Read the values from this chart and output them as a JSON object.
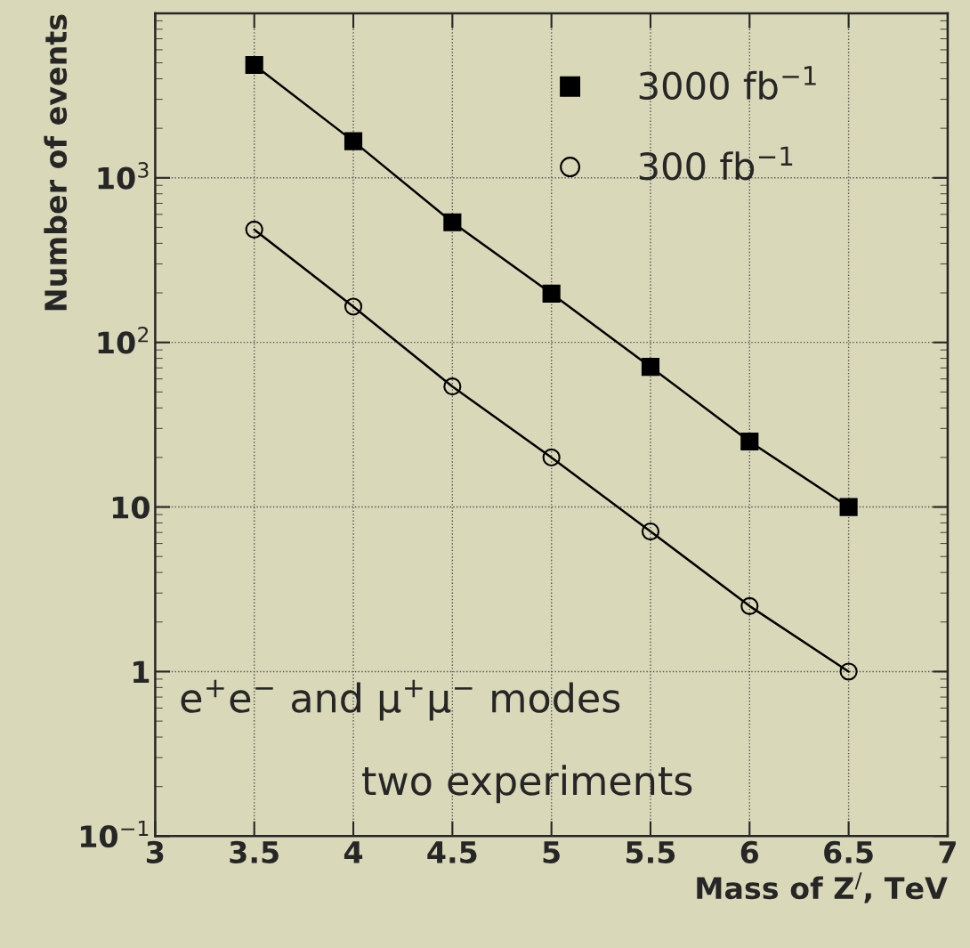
{
  "chart_data": {
    "type": "line",
    "xlabel": "Mass of Z$^{/}$, TeV",
    "ylabel": "Number of events",
    "x": [
      3.5,
      4.0,
      4.5,
      5.0,
      5.5,
      6.0,
      6.5
    ],
    "series": [
      {
        "name": "3000 fb$^{−1}$",
        "color": "#000000",
        "marker": "square",
        "values": [
          4850,
          1670,
          537,
          198,
          71,
          25,
          10
        ]
      },
      {
        "name": "300 fb$^{−1}$",
        "color": "#000000",
        "marker": "circle",
        "values": [
          485,
          165,
          54,
          20,
          7.1,
          2.5,
          1.0
        ]
      }
    ],
    "log": "y",
    "xlim": [
      3,
      7
    ],
    "ylim": [
      0.1,
      10000
    ],
    "xticks": [
      3,
      3.5,
      4,
      4.5,
      5,
      5.5,
      6,
      6.5,
      7
    ],
    "yticks": [
      {
        "value": 0.1,
        "label": "10$^{−1}$"
      },
      1,
      10,
      {
        "value": 100,
        "label": "10$^{2}$"
      },
      {
        "value": 1000,
        "label": "10$^{3}$"
      }
    ],
    "grid": true,
    "legend": "top right",
    "line_style": "solid",
    "annotations": [
      "e$^{+}$e$^{−}$ and μ$^{+}$μ$^{−}$ modes",
      "two experiments"
    ]
  }
}
